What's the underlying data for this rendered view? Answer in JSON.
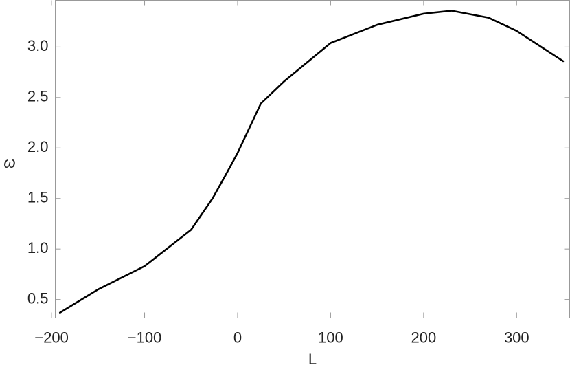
{
  "chart_data": {
    "type": "line",
    "x_label": "L",
    "y_label": "ω",
    "x": [
      -191,
      -150,
      -100,
      -50,
      -27,
      -13,
      0,
      25,
      50,
      100,
      150,
      200,
      230,
      270,
      300,
      350
    ],
    "values": [
      0.37,
      0.6,
      0.83,
      1.19,
      1.5,
      1.73,
      1.95,
      2.44,
      2.66,
      3.04,
      3.22,
      3.33,
      3.36,
      3.29,
      3.16,
      2.86
    ],
    "color": "#000000",
    "xlim": [
      -196,
      357
    ],
    "ylim": [
      0.317,
      3.462
    ],
    "xticks": [
      {
        "value": -200,
        "label": "−200"
      },
      {
        "value": -100,
        "label": "−100"
      },
      0,
      100,
      200,
      300
    ],
    "yticks": [
      0.5,
      {
        "value": 1.0,
        "label": "1.0"
      },
      1.5,
      {
        "value": 2.0,
        "label": "2.0"
      },
      2.5,
      {
        "value": 3.0,
        "label": "3.0"
      }
    ],
    "grid": false
  }
}
